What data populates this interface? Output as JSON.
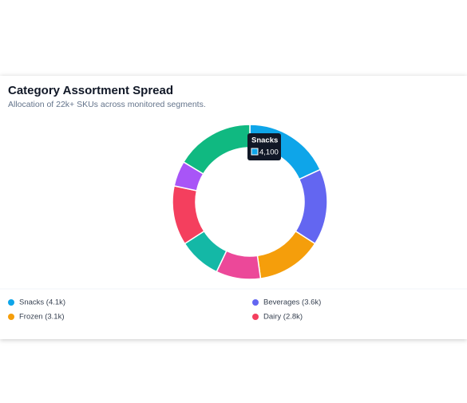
{
  "chart_data": {
    "type": "donut",
    "title": "Category Assortment Spread",
    "subtitle": "Allocation of 22k+ SKUs across monitored segments.",
    "categories": [
      "Snacks",
      "Beverages",
      "Frozen",
      null,
      null,
      "Dairy",
      null,
      null
    ],
    "values": [
      4100,
      3600,
      3100,
      2100,
      2000,
      2800,
      1200,
      3700
    ],
    "colors": [
      "#0ea5e9",
      "#6366f1",
      "#f59e0b",
      "#ec4899",
      "#14b8a6",
      "#f43f5e",
      "#a855f7",
      "#10b981"
    ],
    "legend_labels": [
      "Snacks (4.1k)",
      "Beverages (3.6k)",
      "Frozen (3.1k)",
      "Dairy (2.8k)"
    ],
    "tooltip_value_label": "4,100"
  }
}
